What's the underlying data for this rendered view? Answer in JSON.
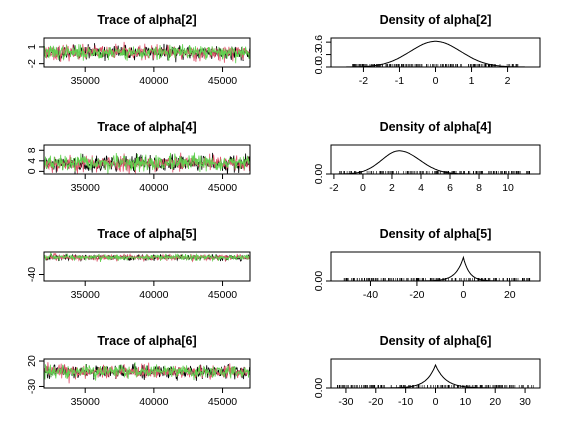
{
  "chart_data": [
    {
      "type": "line",
      "title": "Trace of alpha[2]",
      "xlim": [
        32000,
        47000
      ],
      "ylim": [
        -2.6,
        2.6
      ],
      "xticks": [
        35000,
        40000,
        45000
      ],
      "xtick_labels": [
        "35000",
        "40000",
        "45000"
      ],
      "yticks": [
        -2,
        1
      ],
      "ytick_labels": [
        "-2",
        "1"
      ],
      "series": [
        {
          "color": "#000000",
          "center": 0.0,
          "spread": 0.62,
          "seed": 11
        },
        {
          "color": "#df536b",
          "center": 0.0,
          "spread": 0.62,
          "seed": 23
        },
        {
          "color": "#61d04f",
          "center": 0.0,
          "spread": 0.62,
          "seed": 37
        }
      ]
    },
    {
      "type": "line",
      "title": "Density of alpha[2]",
      "xlim": [
        -2.9,
        2.9
      ],
      "ylim": [
        0,
        0.7
      ],
      "xticks": [
        -2,
        -1,
        0,
        1,
        2
      ],
      "xtick_labels": [
        "-2",
        "-1",
        "0",
        "1",
        "2"
      ],
      "yticks": [
        0,
        0.3,
        0.6
      ],
      "ytick_labels": [
        "0.0",
        "0.3",
        "0.6"
      ],
      "density": {
        "mode": 0,
        "peak": 0.62,
        "sd_left": 0.7,
        "sd_right": 0.7,
        "shape": "normal"
      },
      "rug_range": [
        -2.3,
        2.3
      ]
    },
    {
      "type": "line",
      "title": "Trace of alpha[4]",
      "xlim": [
        32000,
        47000
      ],
      "ylim": [
        -1,
        10
      ],
      "xticks": [
        35000,
        40000,
        45000
      ],
      "xtick_labels": [
        "35000",
        "40000",
        "45000"
      ],
      "yticks": [
        0,
        4,
        8
      ],
      "ytick_labels": [
        "0",
        "4",
        "8"
      ],
      "series": [
        {
          "color": "#000000",
          "center": 3.0,
          "spread": 1.5,
          "seed": 41
        },
        {
          "color": "#df536b",
          "center": 3.0,
          "spread": 1.5,
          "seed": 53
        },
        {
          "color": "#61d04f",
          "center": 3.0,
          "spread": 1.5,
          "seed": 67
        }
      ]
    },
    {
      "type": "line",
      "title": "Density of alpha[4]",
      "xlim": [
        -2.2,
        12.2
      ],
      "ylim": [
        0,
        0.3
      ],
      "xticks": [
        -2,
        0,
        2,
        4,
        6,
        8,
        10
      ],
      "xtick_labels": [
        "-2",
        "0",
        "2",
        "4",
        "6",
        "8",
        "10"
      ],
      "yticks": [
        0
      ],
      "ytick_labels": [
        "0.00"
      ],
      "density": {
        "mode": 2.5,
        "peak": 0.24,
        "sd_left": 1.2,
        "sd_right": 1.4,
        "shape": "normal"
      },
      "rug_range": [
        -1.6,
        11.6
      ]
    },
    {
      "type": "line",
      "title": "Trace of alpha[5]",
      "xlim": [
        32000,
        47000
      ],
      "ylim": [
        -55,
        12
      ],
      "xticks": [
        35000,
        40000,
        45000
      ],
      "xtick_labels": [
        "35000",
        "40000",
        "45000"
      ],
      "yticks": [
        -40
      ],
      "ytick_labels": [
        "-40"
      ],
      "series": [
        {
          "color": "#000000",
          "center": -0.5,
          "spread": 3.5,
          "seed": 71
        },
        {
          "color": "#df536b",
          "center": -0.5,
          "spread": 3.5,
          "seed": 83
        },
        {
          "color": "#61d04f",
          "center": -0.5,
          "spread": 3.5,
          "seed": 97
        }
      ]
    },
    {
      "type": "line",
      "title": "Density of alpha[5]",
      "xlim": [
        -57,
        33
      ],
      "ylim": [
        0,
        0.16
      ],
      "xticks": [
        -40,
        -20,
        0,
        20
      ],
      "xtick_labels": [
        "-40",
        "-20",
        "0",
        "20"
      ],
      "yticks": [
        0
      ],
      "ytick_labels": [
        "0.00"
      ],
      "density": {
        "mode": 0,
        "peak": 0.13,
        "sd_left": 3.2,
        "sd_right": 2.6,
        "shape": "laplace"
      },
      "rug_range": [
        -52,
        30
      ]
    },
    {
      "type": "line",
      "title": "Trace of alpha[6]",
      "xlim": [
        32000,
        47000
      ],
      "ylim": [
        -33,
        24
      ],
      "xticks": [
        35000,
        40000,
        45000
      ],
      "xtick_labels": [
        "35000",
        "40000",
        "45000"
      ],
      "yticks": [
        -30,
        20
      ],
      "ytick_labels": [
        "-30",
        "20"
      ],
      "series": [
        {
          "color": "#000000",
          "center": -1.0,
          "spread": 6.5,
          "seed": 101
        },
        {
          "color": "#df536b",
          "center": -1.0,
          "spread": 6.5,
          "seed": 113
        },
        {
          "color": "#61d04f",
          "center": -1.0,
          "spread": 6.5,
          "seed": 127
        }
      ]
    },
    {
      "type": "line",
      "title": "Density of alpha[6]",
      "xlim": [
        -35,
        35
      ],
      "ylim": [
        0,
        0.12
      ],
      "xticks": [
        -30,
        -20,
        -10,
        0,
        10,
        20,
        30
      ],
      "xtick_labels": [
        "-30",
        "-20",
        "-10",
        "0",
        "10",
        "20",
        "30"
      ],
      "yticks": [
        0
      ],
      "ytick_labels": [
        "0.00"
      ],
      "density": {
        "mode": 0,
        "peak": 0.095,
        "sd_left": 3.0,
        "sd_right": 3.4,
        "shape": "laplace"
      },
      "rug_range": [
        -33,
        33
      ]
    }
  ]
}
